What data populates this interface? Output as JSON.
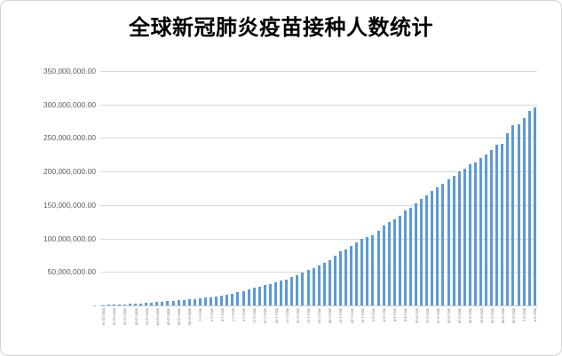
{
  "chart_data": {
    "type": "bar",
    "title": "全球新冠肺炎疫苗接种人数统计",
    "xlabel": "",
    "ylabel": "",
    "ylim": [
      0,
      350000000
    ],
    "y_tick_interval": 50000000,
    "y_tick_labels": [
      "350,000,000.00",
      "300,000,000.00",
      "250,000,000.00",
      "200,000,000.00",
      "150,000,000.00",
      "100,000,000.00",
      "50,000,000.00",
      "-"
    ],
    "x_label_every": 2,
    "grid": true,
    "legend_position": "none",
    "bar_color": "#5b9bd5",
    "gridline_color": "#d9d9d9",
    "axis_label_color": "#595959",
    "title_color": "#000000",
    "categories": [
      "2020-12-14",
      "2020-12-15",
      "2020-12-16",
      "2020-12-17",
      "2020-12-18",
      "2020-12-19",
      "2020-12-20",
      "2020-12-21",
      "2020-12-22",
      "2020-12-23",
      "2020-12-24",
      "2020-12-25",
      "2020-12-26",
      "2020-12-27",
      "2020-12-28",
      "2020-12-29",
      "2020-12-30",
      "2020-12-31",
      "2021-1-1",
      "2021-1-2",
      "2021-1-3",
      "2021-1-4",
      "2021-1-5",
      "2021-1-6",
      "2021-1-7",
      "2021-1-8",
      "2021-1-9",
      "2021-1-10",
      "2021-1-11",
      "2021-1-12",
      "2021-1-13",
      "2021-1-14",
      "2021-1-15",
      "2021-1-16",
      "2021-1-17",
      "2021-1-18",
      "2021-1-19",
      "2021-1-20",
      "2021-1-21",
      "2021-1-22",
      "2021-1-23",
      "2021-1-24",
      "2021-1-25",
      "2021-1-26",
      "2021-1-27",
      "2021-1-28",
      "2021-1-29",
      "2021-1-30",
      "2021-1-31",
      "2021-2-1",
      "2021-2-2",
      "2021-2-3",
      "2021-2-4",
      "2021-2-5",
      "2021-2-6",
      "2021-2-7",
      "2021-2-8",
      "2021-2-9",
      "2021-2-10",
      "2021-2-11",
      "2021-2-12",
      "2021-2-13",
      "2021-2-14",
      "2021-2-15",
      "2021-2-16",
      "2021-2-17",
      "2021-2-18",
      "2021-2-19",
      "2021-2-20",
      "2021-2-21",
      "2021-2-22",
      "2021-2-23",
      "2021-2-24",
      "2021-2-25",
      "2021-2-26",
      "2021-2-27",
      "2021-2-28",
      "2021-3-1",
      "2021-3-2",
      "2021-3-3",
      "2021-3-4"
    ],
    "values": [
      300000,
      700000,
      1100000,
      1500000,
      1900000,
      2300000,
      2800000,
      3300000,
      3800000,
      4300000,
      4800000,
      5400000,
      6000000,
      6700000,
      7400000,
      8200000,
      9000000,
      9800000,
      10600000,
      11300000,
      12000000,
      13200000,
      14500000,
      16000000,
      17600000,
      19400000,
      21400000,
      23600000,
      26000000,
      28000000,
      30000000,
      32000000,
      34000000,
      36500000,
      39000000,
      42000000,
      45500000,
      49000000,
      52500000,
      56000000,
      59500000,
      63000000,
      67500000,
      74500000,
      80500000,
      84000000,
      88500000,
      94000000,
      100000000,
      101500000,
      105000000,
      111000000,
      119000000,
      124000000,
      129000000,
      134000000,
      142000000,
      146000000,
      152000000,
      159000000,
      164000000,
      171000000,
      176000000,
      181000000,
      188000000,
      193000000,
      200000000,
      204000000,
      211000000,
      213000000,
      220000000,
      226000000,
      232000000,
      240000000,
      241000000,
      257000000,
      269000000,
      271000000,
      280000000,
      290000000,
      296000000
    ]
  }
}
